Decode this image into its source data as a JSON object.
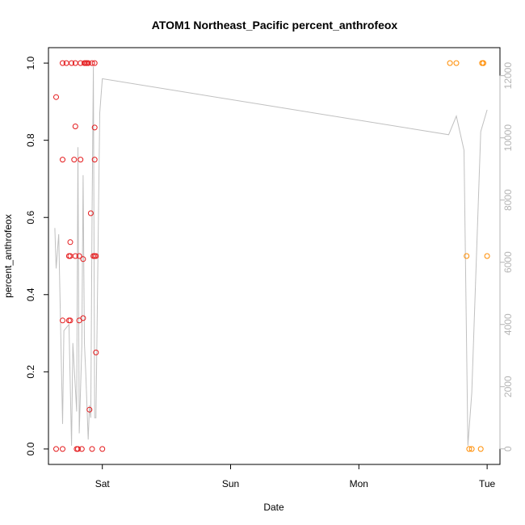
{
  "chart_data": {
    "type": "scatter",
    "title": "ATOM1 Northeast_Pacific percent_anthrofeox",
    "xlabel": "Date",
    "ylabel": "percent_anthrofeox",
    "x_ticks": [
      {
        "label": "Sat",
        "value": 1.0
      },
      {
        "label": "Sun",
        "value": 2.0
      },
      {
        "label": "Mon",
        "value": 3.0
      },
      {
        "label": "Tue",
        "value": 4.0
      }
    ],
    "x_units": "days after Friday 00:00 (Sat = 1)",
    "xlim": [
      0.58,
      4.1
    ],
    "ylim": [
      -0.04,
      1.04
    ],
    "y_ticks": [
      "0.0",
      "0.2",
      "0.4",
      "0.6",
      "0.8",
      "1.0"
    ],
    "y2lim": [
      -500,
      12900
    ],
    "y2_ticks": [
      "0",
      "2000",
      "4000",
      "6000",
      "8000",
      "10000",
      "12000"
    ],
    "colors": {
      "red_points": "#e41a1c",
      "orange_points": "#ff8c00",
      "line": "#c0c0c0",
      "right_axis": "#b5b5b5",
      "frame": "#000000"
    },
    "series": [
      {
        "color_key": "red_points",
        "points": [
          [
            0.64,
            0.0
          ],
          [
            0.64,
            0.912
          ],
          [
            0.69,
            0.0
          ],
          [
            0.69,
            0.333
          ],
          [
            0.69,
            0.75
          ],
          [
            0.69,
            1.0
          ],
          [
            0.72,
            1.0
          ],
          [
            0.74,
            0.5
          ],
          [
            0.74,
            0.333
          ],
          [
            0.75,
            0.333
          ],
          [
            0.75,
            0.5
          ],
          [
            0.75,
            0.536
          ],
          [
            0.76,
            1.0
          ],
          [
            0.78,
            0.75
          ],
          [
            0.79,
            1.0
          ],
          [
            0.79,
            0.5
          ],
          [
            0.79,
            0.836
          ],
          [
            0.8,
            0.0
          ],
          [
            0.81,
            0.0
          ],
          [
            0.82,
            0.5
          ],
          [
            0.82,
            0.333
          ],
          [
            0.83,
            1.0
          ],
          [
            0.83,
            0.75
          ],
          [
            0.84,
            0.0
          ],
          [
            0.85,
            0.492
          ],
          [
            0.85,
            0.339
          ],
          [
            0.86,
            1.0
          ],
          [
            0.87,
            1.0
          ],
          [
            0.88,
            1.0
          ],
          [
            0.89,
            1.0
          ],
          [
            0.9,
            0.102
          ],
          [
            0.91,
            0.611
          ],
          [
            0.92,
            1.0
          ],
          [
            0.92,
            0.0
          ],
          [
            0.93,
            0.5
          ],
          [
            0.94,
            0.5
          ],
          [
            0.94,
            0.75
          ],
          [
            0.94,
            0.833
          ],
          [
            0.94,
            1.0
          ],
          [
            0.95,
            0.25
          ],
          [
            0.95,
            0.5
          ],
          [
            1.0,
            0.0
          ]
        ]
      },
      {
        "color_key": "orange_points",
        "points": [
          [
            3.71,
            1.0
          ],
          [
            3.76,
            1.0
          ],
          [
            3.84,
            0.5
          ],
          [
            3.86,
            0.0
          ],
          [
            3.88,
            0.0
          ],
          [
            3.95,
            0.0
          ],
          [
            3.96,
            1.0
          ],
          [
            3.97,
            1.0
          ],
          [
            3.97,
            1.0
          ],
          [
            4.0,
            0.5
          ]
        ]
      }
    ],
    "line_series": {
      "axis": "right",
      "points": [
        [
          0.63,
          7100
        ],
        [
          0.64,
          5800
        ],
        [
          0.66,
          6900
        ],
        [
          0.69,
          800
        ],
        [
          0.7,
          3800
        ],
        [
          0.74,
          4000
        ],
        [
          0.76,
          100
        ],
        [
          0.77,
          3400
        ],
        [
          0.8,
          1200
        ],
        [
          0.81,
          9700
        ],
        [
          0.82,
          500
        ],
        [
          0.84,
          3300
        ],
        [
          0.85,
          8800
        ],
        [
          0.86,
          3400
        ],
        [
          0.87,
          2500
        ],
        [
          0.89,
          300
        ],
        [
          0.9,
          1400
        ],
        [
          0.91,
          1000
        ],
        [
          0.92,
          7600
        ],
        [
          0.93,
          12300
        ],
        [
          0.94,
          1000
        ],
        [
          0.95,
          1000
        ],
        [
          0.98,
          10800
        ],
        [
          1.0,
          11900
        ],
        [
          3.7,
          10100
        ],
        [
          3.76,
          10700
        ],
        [
          3.82,
          9600
        ],
        [
          3.85,
          100
        ],
        [
          3.88,
          1800
        ],
        [
          3.95,
          10200
        ],
        [
          4.0,
          10900
        ]
      ]
    }
  }
}
